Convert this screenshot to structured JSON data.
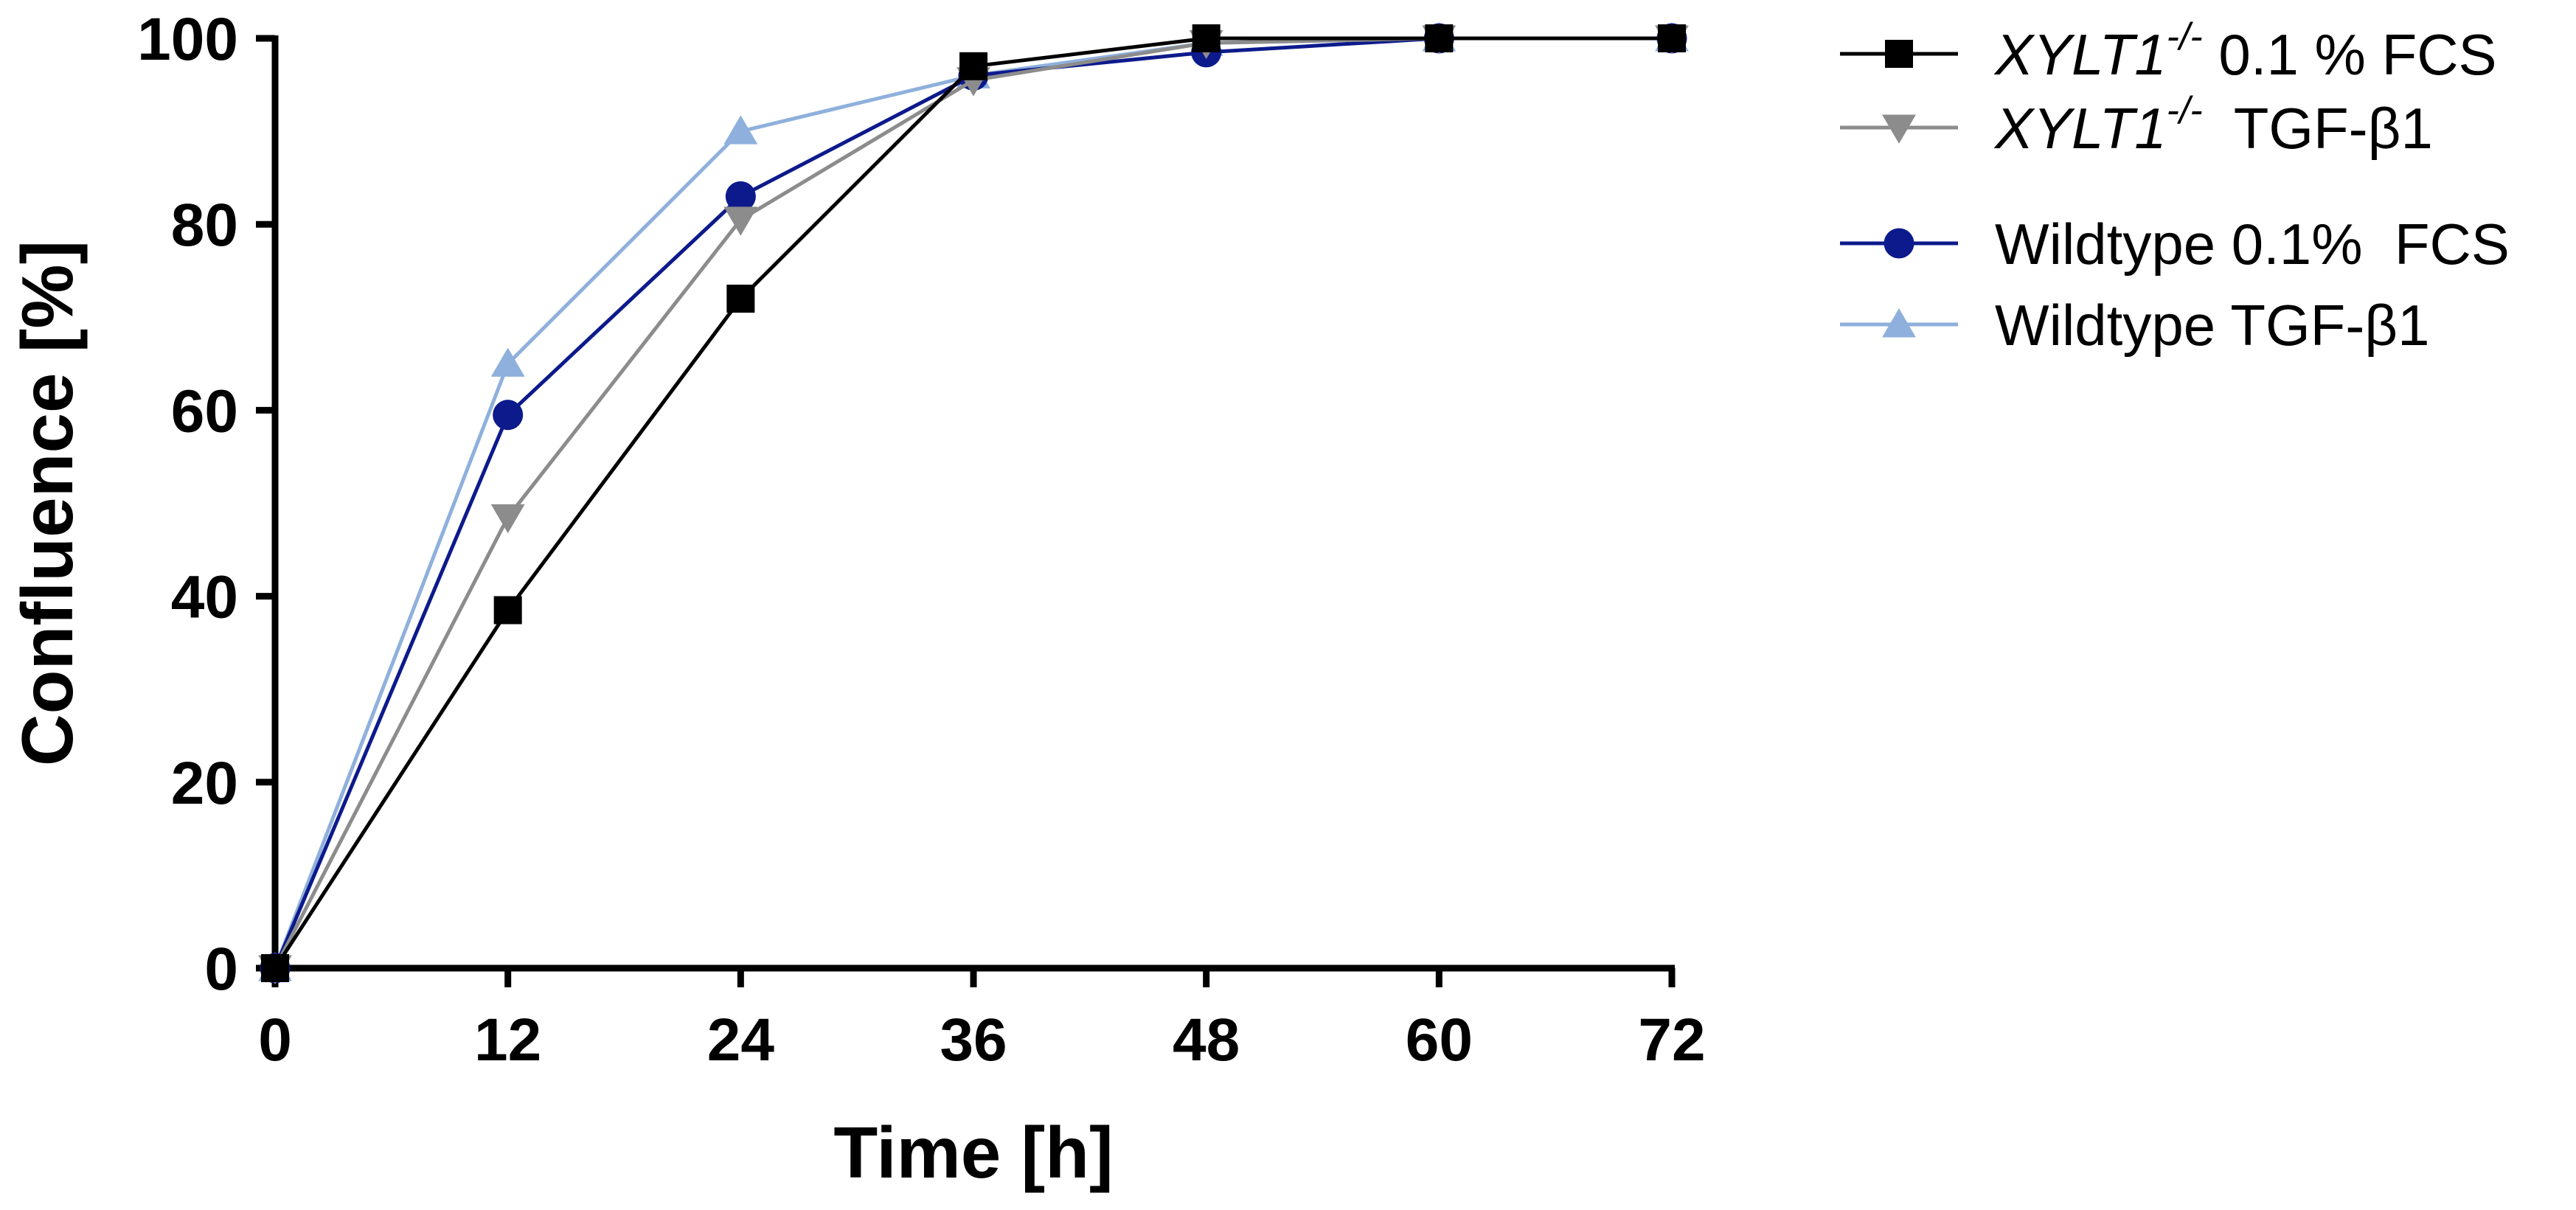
{
  "chart_data": {
    "type": "line",
    "title": "",
    "xlabel": "Time [h]",
    "ylabel": "Confluence [%]",
    "xlim": [
      0,
      72
    ],
    "ylim": [
      0,
      100
    ],
    "xticks": [
      0,
      12,
      24,
      36,
      48,
      60,
      72
    ],
    "yticks": [
      0,
      20,
      40,
      60,
      80,
      100
    ],
    "x": [
      0,
      12,
      24,
      36,
      48,
      60,
      72
    ],
    "grid": false,
    "legend_position": "top-right",
    "series": [
      {
        "name": "XYLT1-/- 0.1 % FCS",
        "label_main": "XYLT1",
        "label_super": "-/-",
        "label_rest": " 0.1 % FCS",
        "marker": "square",
        "color": "#000000",
        "values": [
          0,
          38.5,
          72,
          97,
          100,
          100,
          100
        ]
      },
      {
        "name": "XYLT1-/- TGF-β1",
        "label_main": "XYLT1",
        "label_super": "-/-",
        "label_rest": "  TGF-β1",
        "marker": "triangle-down",
        "color": "#8c8c8c",
        "values": [
          0,
          48.5,
          80.5,
          95.5,
          99.5,
          100,
          100
        ]
      },
      {
        "name": "Wildtype 0.1%  FCS",
        "label_main": "Wildtype 0.1%  FCS",
        "label_super": "",
        "label_rest": "",
        "marker": "circle",
        "color": "#0d1a8c",
        "values": [
          0,
          59.5,
          83,
          96,
          98.5,
          100,
          100
        ]
      },
      {
        "name": "Wildtype TGF-β1",
        "label_main": "Wildtype TGF-β1",
        "label_super": "",
        "label_rest": "",
        "marker": "triangle-up",
        "color": "#8fb0dc",
        "values": [
          0,
          65,
          90,
          96,
          99.5,
          100,
          100
        ]
      }
    ]
  }
}
